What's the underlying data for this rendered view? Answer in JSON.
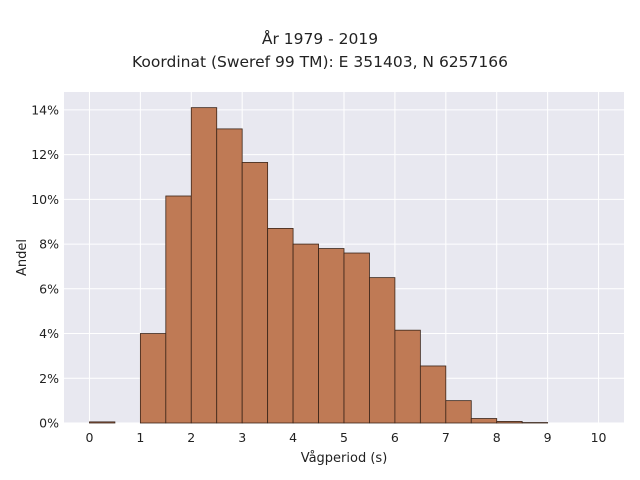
{
  "chart_data": {
    "type": "bar",
    "title_lines": [
      "År 1979 - 2019",
      "Koordinat (Sweref 99 TM): E 351403, N 6257166"
    ],
    "xlabel": "Vågperiod (s)",
    "ylabel": "Andel",
    "xlim": [
      -0.5,
      10.5
    ],
    "ylim": [
      0,
      14.8
    ],
    "xticks": [
      0,
      1,
      2,
      3,
      4,
      5,
      6,
      7,
      8,
      9,
      10
    ],
    "yticks": [
      0,
      2,
      4,
      6,
      8,
      10,
      12,
      14
    ],
    "ytick_suffix": "%",
    "bin_width": 0.5,
    "bins": [
      {
        "x0": 0.0,
        "value": 0.05
      },
      {
        "x0": 0.5,
        "value": 0.0
      },
      {
        "x0": 1.0,
        "value": 4.0
      },
      {
        "x0": 1.5,
        "value": 10.15
      },
      {
        "x0": 2.0,
        "value": 14.1
      },
      {
        "x0": 2.5,
        "value": 13.15
      },
      {
        "x0": 3.0,
        "value": 11.65
      },
      {
        "x0": 3.5,
        "value": 8.7
      },
      {
        "x0": 4.0,
        "value": 8.0
      },
      {
        "x0": 4.5,
        "value": 7.8
      },
      {
        "x0": 5.0,
        "value": 7.6
      },
      {
        "x0": 5.5,
        "value": 6.5
      },
      {
        "x0": 6.0,
        "value": 4.15
      },
      {
        "x0": 6.5,
        "value": 2.55
      },
      {
        "x0": 7.0,
        "value": 1.0
      },
      {
        "x0": 7.5,
        "value": 0.2
      },
      {
        "x0": 8.0,
        "value": 0.07
      },
      {
        "x0": 8.5,
        "value": 0.02
      }
    ],
    "grid": true,
    "colors": {
      "bar_fill": "#bf7a55",
      "bar_edge": "#3a2418",
      "plot_bg": "#e8e8f0",
      "grid": "#ffffff"
    }
  }
}
